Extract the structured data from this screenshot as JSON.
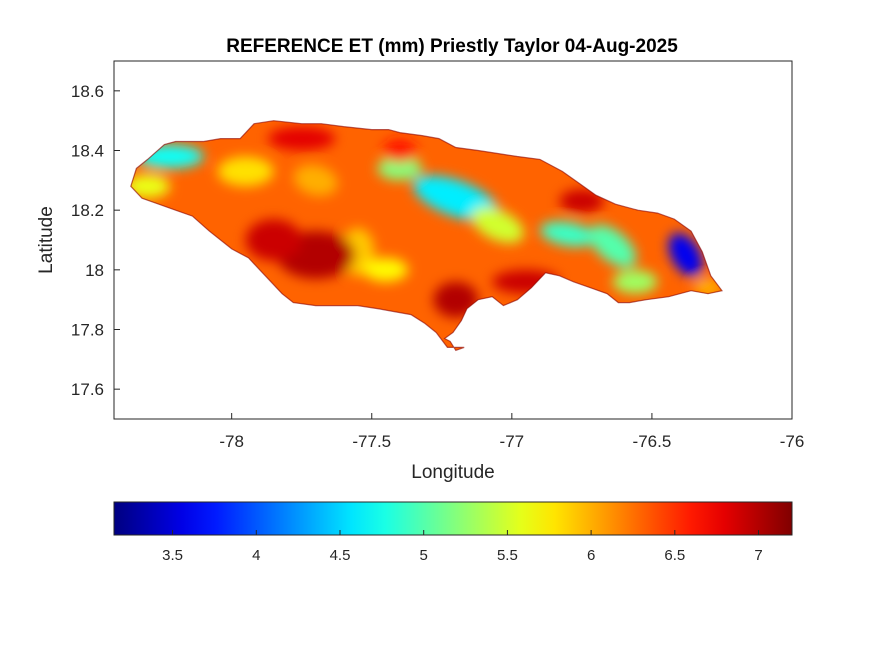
{
  "chart_data": {
    "type": "heatmap",
    "title": "REFERENCE ET (mm) Priestly Taylor 04-Aug-2025",
    "xlabel": "Longitude",
    "ylabel": "Latitude",
    "xlim": [
      -78.42,
      -76.0
    ],
    "ylim": [
      17.5,
      18.7
    ],
    "xticks": [
      -78,
      -77.5,
      -77,
      -76.5,
      -76
    ],
    "xtick_labels": [
      "-78",
      "-77.5",
      "-77",
      "-76.5",
      "-76"
    ],
    "yticks": [
      17.6,
      17.8,
      18.0,
      18.2,
      18.4,
      18.6
    ],
    "ytick_labels": [
      "17.6",
      "17.8",
      "18",
      "18.2",
      "18.4",
      "18.6"
    ],
    "grid": false,
    "colormap": "jet",
    "colorbar": {
      "orientation": "horizontal",
      "location": "below",
      "range": [
        3.15,
        7.2
      ],
      "ticks": [
        3.5,
        4,
        4.5,
        5,
        5.5,
        6,
        6.5,
        7
      ],
      "tick_labels": [
        "3.5",
        "4",
        "4.5",
        "5",
        "5.5",
        "6",
        "6.5",
        "7"
      ]
    },
    "region": "Jamaica",
    "outline_lonlat": [
      [
        -78.36,
        18.28
      ],
      [
        -78.34,
        18.34
      ],
      [
        -78.3,
        18.37
      ],
      [
        -78.24,
        18.42
      ],
      [
        -78.2,
        18.43
      ],
      [
        -78.1,
        18.43
      ],
      [
        -78.04,
        18.44
      ],
      [
        -77.97,
        18.44
      ],
      [
        -77.92,
        18.49
      ],
      [
        -77.85,
        18.5
      ],
      [
        -77.75,
        18.49
      ],
      [
        -77.68,
        18.49
      ],
      [
        -77.6,
        18.48
      ],
      [
        -77.5,
        18.47
      ],
      [
        -77.44,
        18.47
      ],
      [
        -77.4,
        18.46
      ],
      [
        -77.32,
        18.45
      ],
      [
        -77.26,
        18.44
      ],
      [
        -77.2,
        18.41
      ],
      [
        -77.12,
        18.4
      ],
      [
        -77.05,
        18.39
      ],
      [
        -76.98,
        18.38
      ],
      [
        -76.9,
        18.37
      ],
      [
        -76.82,
        18.33
      ],
      [
        -76.76,
        18.29
      ],
      [
        -76.7,
        18.25
      ],
      [
        -76.63,
        18.22
      ],
      [
        -76.55,
        18.2
      ],
      [
        -76.48,
        18.19
      ],
      [
        -76.42,
        18.17
      ],
      [
        -76.36,
        18.13
      ],
      [
        -76.32,
        18.06
      ],
      [
        -76.29,
        17.98
      ],
      [
        -76.25,
        17.93
      ],
      [
        -76.3,
        17.92
      ],
      [
        -76.36,
        17.93
      ],
      [
        -76.44,
        17.91
      ],
      [
        -76.52,
        17.9
      ],
      [
        -76.58,
        17.89
      ],
      [
        -76.62,
        17.89
      ],
      [
        -76.66,
        17.92
      ],
      [
        -76.72,
        17.94
      ],
      [
        -76.78,
        17.96
      ],
      [
        -76.83,
        17.98
      ],
      [
        -76.88,
        17.99
      ],
      [
        -76.93,
        17.94
      ],
      [
        -76.98,
        17.9
      ],
      [
        -77.03,
        17.88
      ],
      [
        -77.07,
        17.91
      ],
      [
        -77.12,
        17.9
      ],
      [
        -77.16,
        17.87
      ],
      [
        -77.18,
        17.83
      ],
      [
        -77.21,
        17.79
      ],
      [
        -77.24,
        17.77
      ],
      [
        -77.22,
        17.76
      ],
      [
        -77.2,
        17.73
      ],
      [
        -77.17,
        17.74
      ],
      [
        -77.23,
        17.74
      ],
      [
        -77.27,
        17.79
      ],
      [
        -77.31,
        17.82
      ],
      [
        -77.36,
        17.85
      ],
      [
        -77.42,
        17.86
      ],
      [
        -77.48,
        17.87
      ],
      [
        -77.55,
        17.88
      ],
      [
        -77.62,
        17.88
      ],
      [
        -77.7,
        17.88
      ],
      [
        -77.78,
        17.89
      ],
      [
        -77.82,
        17.92
      ],
      [
        -77.88,
        17.98
      ],
      [
        -77.94,
        18.04
      ],
      [
        -78.0,
        18.07
      ],
      [
        -78.08,
        18.13
      ],
      [
        -78.14,
        18.18
      ],
      [
        -78.2,
        18.2
      ],
      [
        -78.26,
        18.22
      ],
      [
        -78.32,
        18.24
      ]
    ],
    "field_anomalies": [
      {
        "lon": -77.2,
        "lat": 18.24,
        "rx": 0.16,
        "ry": 0.06,
        "rot": 20,
        "value": 4.6
      },
      {
        "lon": -77.4,
        "lat": 18.34,
        "rx": 0.08,
        "ry": 0.04,
        "rot": 0,
        "value": 5.2
      },
      {
        "lon": -76.8,
        "lat": 18.12,
        "rx": 0.1,
        "ry": 0.04,
        "rot": 10,
        "value": 4.9
      },
      {
        "lon": -76.64,
        "lat": 18.08,
        "rx": 0.1,
        "ry": 0.05,
        "rot": 40,
        "value": 5.0
      },
      {
        "lon": -76.56,
        "lat": 17.96,
        "rx": 0.08,
        "ry": 0.04,
        "rot": 0,
        "value": 5.3
      },
      {
        "lon": -76.38,
        "lat": 18.05,
        "rx": 0.05,
        "ry": 0.08,
        "rot": -30,
        "value": 3.6
      },
      {
        "lon": -78.22,
        "lat": 18.38,
        "rx": 0.12,
        "ry": 0.04,
        "rot": 0,
        "value": 4.7
      },
      {
        "lon": -78.3,
        "lat": 18.28,
        "rx": 0.08,
        "ry": 0.04,
        "rot": 0,
        "value": 5.6
      },
      {
        "lon": -77.95,
        "lat": 18.33,
        "rx": 0.1,
        "ry": 0.05,
        "rot": 0,
        "value": 5.8
      },
      {
        "lon": -77.7,
        "lat": 18.3,
        "rx": 0.08,
        "ry": 0.05,
        "rot": 15,
        "value": 6.0
      },
      {
        "lon": -77.55,
        "lat": 18.06,
        "rx": 0.06,
        "ry": 0.08,
        "rot": 0,
        "value": 5.9
      },
      {
        "lon": -77.05,
        "lat": 18.15,
        "rx": 0.1,
        "ry": 0.05,
        "rot": 25,
        "value": 5.5
      },
      {
        "lon": -77.7,
        "lat": 18.05,
        "rx": 0.14,
        "ry": 0.08,
        "rot": 0,
        "value": 7.0
      },
      {
        "lon": -77.85,
        "lat": 18.1,
        "rx": 0.1,
        "ry": 0.07,
        "rot": 0,
        "value": 6.9
      },
      {
        "lon": -77.2,
        "lat": 17.9,
        "rx": 0.08,
        "ry": 0.06,
        "rot": 0,
        "value": 7.0
      },
      {
        "lon": -76.95,
        "lat": 17.96,
        "rx": 0.12,
        "ry": 0.04,
        "rot": 0,
        "value": 6.9
      },
      {
        "lon": -77.75,
        "lat": 18.44,
        "rx": 0.12,
        "ry": 0.04,
        "rot": 0,
        "value": 6.8
      },
      {
        "lon": -77.4,
        "lat": 18.4,
        "rx": 0.06,
        "ry": 0.04,
        "rot": 0,
        "value": 6.6
      },
      {
        "lon": -76.75,
        "lat": 18.23,
        "rx": 0.08,
        "ry": 0.04,
        "rot": 0,
        "value": 6.9
      },
      {
        "lon": -77.45,
        "lat": 18.0,
        "rx": 0.08,
        "ry": 0.04,
        "rot": 0,
        "value": 5.7
      },
      {
        "lon": -76.3,
        "lat": 17.94,
        "rx": 0.05,
        "ry": 0.03,
        "rot": 0,
        "value": 6.0
      }
    ],
    "field_base_value": 6.3
  }
}
